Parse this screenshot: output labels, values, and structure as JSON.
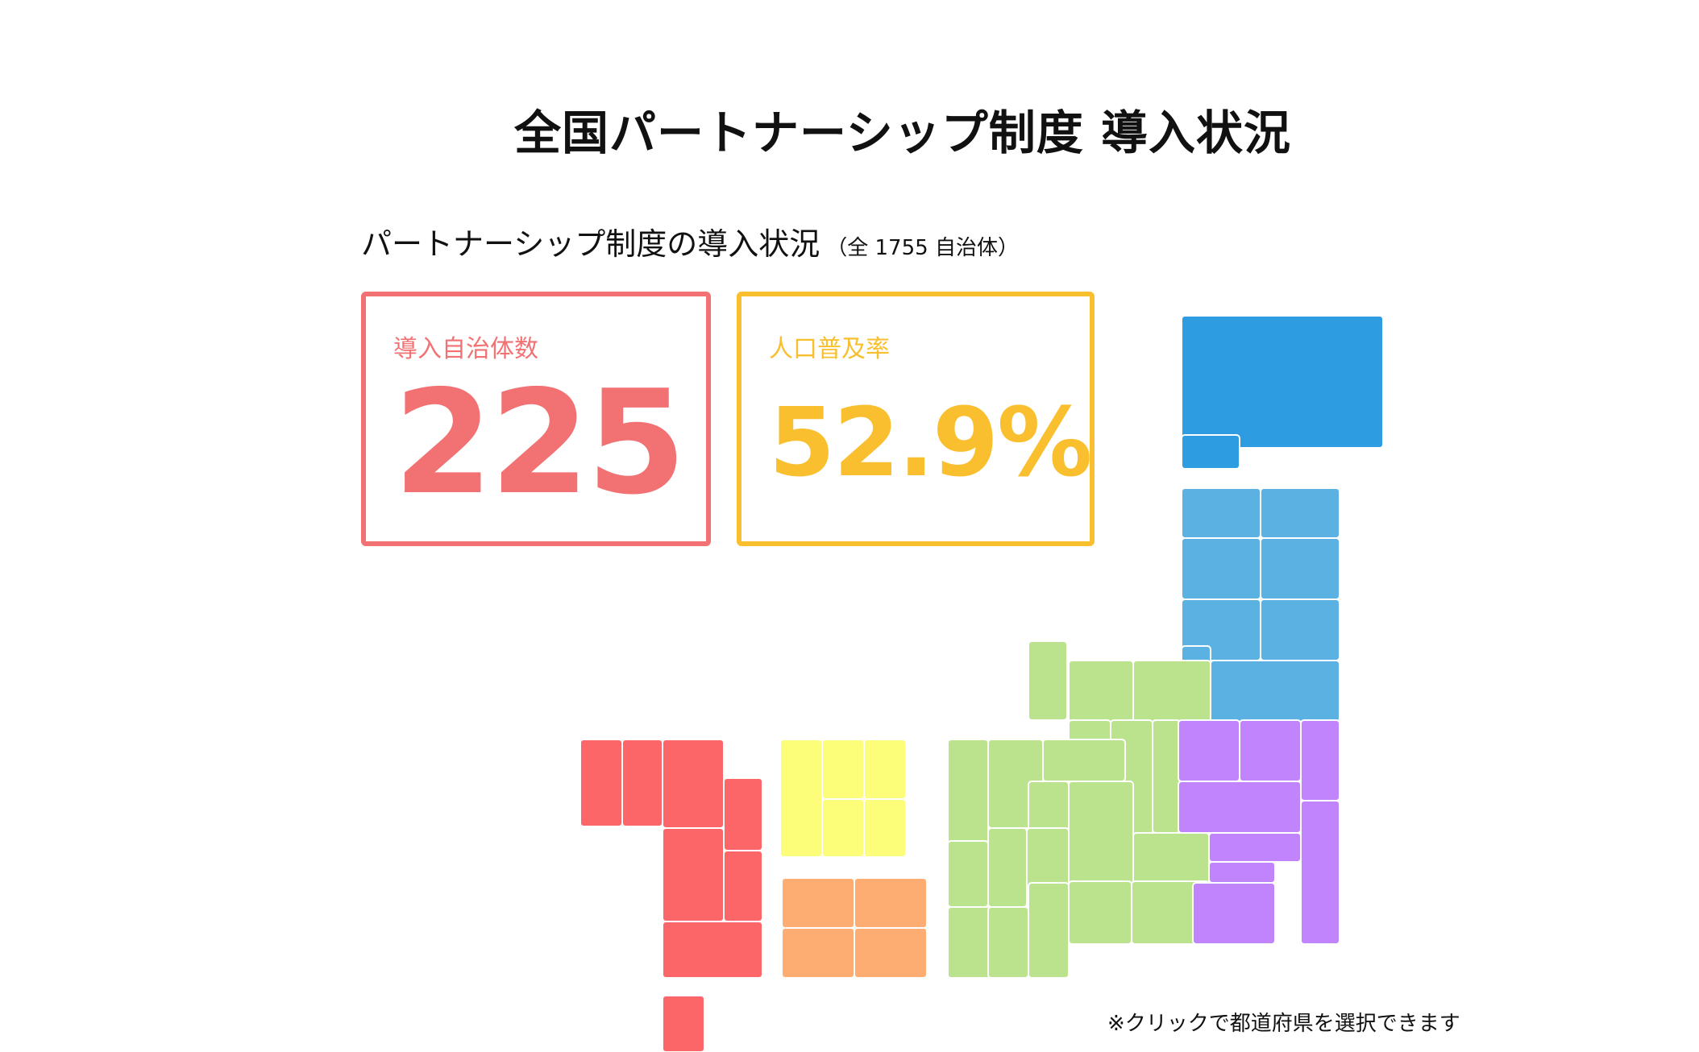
{
  "title": "全国パートナーシップ制度 導入状況",
  "subtitle": {
    "main": "パートナーシップ制度の導入状況",
    "note": "（全 1755 自治体）"
  },
  "stats": {
    "municipalities_label": "導入自治体数",
    "municipalities_value": "225",
    "population_label": "人口普及率",
    "population_value": "52.9%"
  },
  "colors": {
    "count_accent": "#f27173",
    "rate_accent": "#f9bf2e",
    "hokkaido": "#2d9ce0",
    "tohoku": "#5bb2e2",
    "kanto": "#c184fc",
    "chubu_kinki": "#bbe38d",
    "chugoku": "#fcfd78",
    "shikoku": "#fdac72",
    "kyushu": "#fd6669",
    "cell_border": "#ffffff"
  },
  "hint": "※クリックで都道府県を選択できます"
}
